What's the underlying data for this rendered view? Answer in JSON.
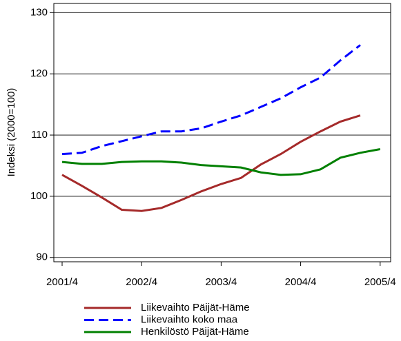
{
  "chart_data": {
    "type": "line",
    "y_label": "Indeksi (2000=100)",
    "categories": [
      "2001/4",
      null,
      null,
      null,
      "2002/4",
      null,
      null,
      null,
      "2003/4",
      null,
      null,
      null,
      "2004/4",
      null,
      null,
      null,
      "2005/4"
    ],
    "series": [
      {
        "name": "Liikevaihto Päijät-Häme",
        "color": "#a52a2a",
        "dash": "solid",
        "values": [
          103.5,
          101.7,
          99.8,
          97.8,
          97.6,
          98.1,
          99.4,
          100.8,
          102.0,
          103.0,
          105.2,
          106.9,
          108.9,
          110.6,
          112.2,
          113.2,
          null
        ]
      },
      {
        "name": "Liikevaihto koko maa",
        "color": "#0000ff",
        "dash": "dashed",
        "values": [
          106.9,
          107.1,
          108.2,
          109.0,
          109.8,
          110.6,
          110.6,
          111.1,
          112.2,
          113.2,
          114.6,
          116.0,
          117.8,
          119.4,
          122.2,
          124.7,
          null
        ]
      },
      {
        "name": "Henkilöstö Päijät-Häme",
        "color": "#008000",
        "dash": "solid",
        "values": [
          105.6,
          105.3,
          105.3,
          105.6,
          105.7,
          105.7,
          105.5,
          105.1,
          104.9,
          104.7,
          103.9,
          103.5,
          103.6,
          104.4,
          106.3,
          107.1,
          107.7
        ]
      }
    ],
    "ylim": [
      89.3,
      131.5
    ],
    "yticks": [
      90,
      100,
      110,
      120,
      130
    ],
    "grid": true,
    "legend": "bottom"
  }
}
